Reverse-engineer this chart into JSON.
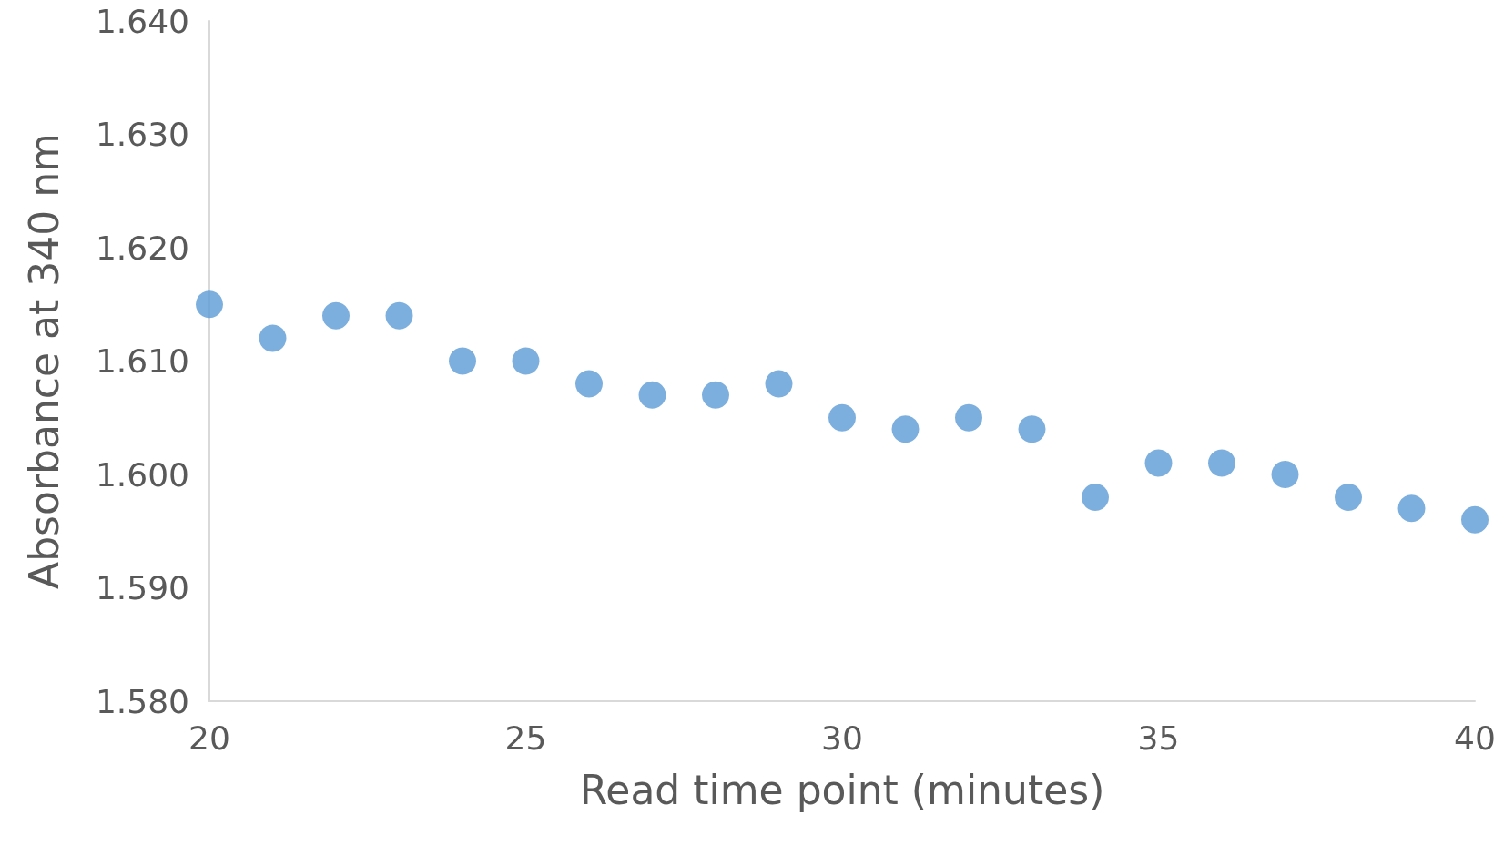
{
  "chart_data": {
    "type": "scatter",
    "xlabel": "Read time point (minutes)",
    "ylabel": "Absorbance at 340 nm",
    "x": [
      20,
      21,
      22,
      23,
      24,
      25,
      26,
      27,
      28,
      29,
      30,
      31,
      32,
      33,
      34,
      35,
      36,
      37,
      38,
      39,
      40
    ],
    "series": [
      {
        "color": "#5b9bd5",
        "values": [
          1.615,
          1.612,
          1.614,
          1.614,
          1.61,
          1.61,
          1.608,
          1.607,
          1.607,
          1.608,
          1.605,
          1.604,
          1.605,
          1.604,
          1.598,
          1.601,
          1.601,
          1.6,
          1.598,
          1.597,
          1.596
        ]
      }
    ],
    "xlim": [
      20,
      40
    ],
    "xticks": [
      20,
      25,
      30,
      35,
      40
    ],
    "ylim": [
      1.58,
      1.64
    ],
    "yticks": [
      {
        "value": 1.58,
        "label": "1.580"
      },
      {
        "value": 1.59,
        "label": "1.590"
      },
      {
        "value": 1.6,
        "label": "1.600"
      },
      {
        "value": 1.61,
        "label": "1.610"
      },
      {
        "value": 1.62,
        "label": "1.620"
      },
      {
        "value": 1.63,
        "label": "1.630"
      },
      {
        "value": 1.64,
        "label": "1.640"
      }
    ],
    "grid": false,
    "marker": "circle"
  }
}
